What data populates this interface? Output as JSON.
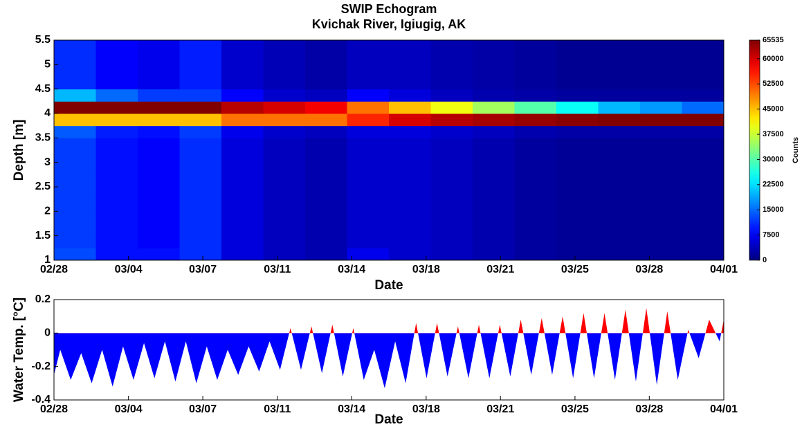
{
  "chart_data": [
    {
      "type": "heatmap",
      "title": "SWIP Echogram",
      "subtitle": "Kvichak River, Igiugig, AK",
      "xlabel": "Date",
      "ylabel": "Depth [m]",
      "colorbar_label": "Counts",
      "colormap": "jet",
      "xlim": [
        0,
        32
      ],
      "ylim": [
        1,
        5.5
      ],
      "xticks": [
        {
          "value": 0,
          "label": "02/28"
        },
        {
          "value": 3.56,
          "label": "03/04"
        },
        {
          "value": 7.11,
          "label": "03/07"
        },
        {
          "value": 10.67,
          "label": "03/11"
        },
        {
          "value": 14.22,
          "label": "03/14"
        },
        {
          "value": 17.78,
          "label": "03/18"
        },
        {
          "value": 21.33,
          "label": "03/21"
        },
        {
          "value": 24.89,
          "label": "03/25"
        },
        {
          "value": 28.44,
          "label": "03/28"
        },
        {
          "value": 32,
          "label": "04/01"
        }
      ],
      "yticks": [
        1,
        1.5,
        2,
        2.5,
        3,
        3.5,
        4,
        4.5,
        5,
        5.5
      ],
      "zlim": [
        0,
        65535
      ],
      "zticks": [
        0,
        7500,
        15000,
        22500,
        30000,
        37500,
        45000,
        52500,
        60000,
        65535
      ],
      "xbins": [
        0,
        2,
        4,
        6,
        8,
        10,
        12,
        14,
        16,
        18,
        20,
        22,
        24,
        26,
        28,
        30,
        32
      ],
      "ybins": [
        1,
        1.25,
        1.5,
        1.75,
        2,
        2.25,
        2.5,
        2.75,
        3,
        3.25,
        3.5,
        3.75,
        4,
        4.25,
        4.5,
        4.75,
        5,
        5.25,
        5.5
      ],
      "z": [
        [
          13000,
          9000,
          9000,
          11000,
          6000,
          4000,
          3000,
          7000,
          5000,
          4000,
          3000,
          2000,
          1500,
          1500,
          1500,
          1500
        ],
        [
          12000,
          9000,
          8000,
          11000,
          6000,
          4000,
          3000,
          5000,
          5000,
          4000,
          3000,
          2000,
          1500,
          1500,
          1500,
          1500
        ],
        [
          12000,
          9000,
          8000,
          11000,
          6000,
          4000,
          3000,
          5000,
          5000,
          4000,
          3000,
          2000,
          1500,
          1500,
          1500,
          1500
        ],
        [
          12000,
          9000,
          8000,
          11000,
          6000,
          4000,
          3000,
          5000,
          5000,
          4000,
          3000,
          2000,
          1500,
          1500,
          1500,
          1500
        ],
        [
          12000,
          9000,
          8000,
          11000,
          6000,
          4000,
          3000,
          5000,
          5000,
          4000,
          3000,
          2000,
          1500,
          1500,
          1500,
          1500
        ],
        [
          12000,
          9000,
          8000,
          11000,
          6000,
          4000,
          3000,
          5000,
          5000,
          4000,
          3000,
          2000,
          1500,
          1500,
          1500,
          1500
        ],
        [
          12000,
          9000,
          8000,
          11000,
          6000,
          4000,
          3000,
          5000,
          5000,
          4000,
          3000,
          2000,
          1500,
          1500,
          1500,
          1500
        ],
        [
          12000,
          9000,
          8000,
          11000,
          6000,
          4000,
          3000,
          5000,
          5000,
          4000,
          3000,
          2000,
          1500,
          1500,
          1500,
          1500
        ],
        [
          12000,
          9000,
          8000,
          11000,
          6000,
          4000,
          3000,
          5000,
          5000,
          4000,
          3000,
          2000,
          1500,
          1500,
          1500,
          1500
        ],
        [
          12000,
          9000,
          8000,
          11000,
          6000,
          4000,
          3000,
          5000,
          5000,
          4000,
          3000,
          2000,
          1500,
          1500,
          1500,
          1500
        ],
        [
          14000,
          10000,
          9000,
          12000,
          7000,
          5000,
          4000,
          6000,
          6000,
          5000,
          4000,
          3000,
          2500,
          2500,
          2500,
          2500
        ],
        [
          45000,
          45000,
          45000,
          45000,
          50000,
          50000,
          50000,
          55000,
          60000,
          62000,
          63000,
          64000,
          65000,
          65535,
          65535,
          65535
        ],
        [
          65535,
          65535,
          65535,
          65535,
          62000,
          60000,
          58000,
          50000,
          45000,
          40000,
          35000,
          30000,
          25000,
          20000,
          18000,
          15000
        ],
        [
          20000,
          15000,
          12000,
          12000,
          8000,
          5000,
          4000,
          8000,
          6000,
          4000,
          3000,
          2500,
          2000,
          2000,
          2000,
          2000
        ],
        [
          11000,
          8000,
          7000,
          10000,
          5000,
          3500,
          2500,
          4000,
          4000,
          3000,
          2500,
          1800,
          1200,
          1200,
          1200,
          1200
        ],
        [
          11000,
          8000,
          7000,
          10000,
          5000,
          3500,
          2500,
          4000,
          4000,
          3000,
          2500,
          1800,
          1200,
          1200,
          1200,
          1200
        ],
        [
          11000,
          8000,
          7000,
          10000,
          5000,
          3500,
          2500,
          4000,
          4000,
          3000,
          2500,
          1800,
          1200,
          1200,
          1200,
          1200
        ],
        [
          11000,
          8000,
          7000,
          10000,
          5000,
          3500,
          2500,
          4000,
          4000,
          3000,
          2500,
          1800,
          1200,
          1200,
          1200,
          1200
        ]
      ]
    },
    {
      "type": "area",
      "xlabel": "Date",
      "ylabel": "Water Temp. [°C]",
      "xlim": [
        0,
        32
      ],
      "ylim": [
        -0.4,
        0.2
      ],
      "xticks": [
        {
          "value": 0,
          "label": "02/28"
        },
        {
          "value": 3.56,
          "label": "03/04"
        },
        {
          "value": 7.11,
          "label": "03/07"
        },
        {
          "value": 10.67,
          "label": "03/11"
        },
        {
          "value": 14.22,
          "label": "03/14"
        },
        {
          "value": 17.78,
          "label": "03/18"
        },
        {
          "value": 21.33,
          "label": "03/21"
        },
        {
          "value": 24.89,
          "label": "03/25"
        },
        {
          "value": 28.44,
          "label": "03/28"
        },
        {
          "value": 32,
          "label": "04/01"
        }
      ],
      "yticks": [
        -0.4,
        -0.2,
        0,
        0.2
      ],
      "color_above": "#ff0000",
      "color_below": "#0000ff",
      "x": [
        0,
        0.3,
        0.8,
        1.3,
        1.8,
        2.3,
        2.8,
        3.3,
        3.8,
        4.3,
        4.8,
        5.3,
        5.8,
        6.3,
        6.8,
        7.3,
        7.8,
        8.3,
        8.8,
        9.3,
        9.8,
        10.3,
        10.8,
        11.3,
        11.8,
        12.3,
        12.8,
        13.3,
        13.8,
        14.3,
        14.8,
        15.3,
        15.8,
        16.3,
        16.8,
        17.3,
        17.8,
        18.3,
        18.8,
        19.3,
        19.8,
        20.3,
        20.8,
        21.3,
        21.8,
        22.3,
        22.8,
        23.3,
        23.8,
        24.3,
        24.8,
        25.3,
        25.8,
        26.3,
        26.8,
        27.3,
        27.8,
        28.3,
        28.8,
        29.3,
        29.8,
        30.3,
        30.8,
        31.3,
        31.8,
        32
      ],
      "values": [
        -0.25,
        -0.1,
        -0.28,
        -0.12,
        -0.3,
        -0.1,
        -0.32,
        -0.08,
        -0.28,
        -0.06,
        -0.27,
        -0.05,
        -0.29,
        -0.05,
        -0.3,
        -0.08,
        -0.28,
        -0.1,
        -0.25,
        -0.08,
        -0.23,
        -0.05,
        -0.22,
        0.03,
        -0.22,
        0.04,
        -0.24,
        0.05,
        -0.26,
        0.03,
        -0.28,
        -0.1,
        -0.33,
        -0.05,
        -0.3,
        0.06,
        -0.27,
        0.06,
        -0.26,
        0.04,
        -0.27,
        0.05,
        -0.27,
        0.05,
        -0.26,
        0.08,
        -0.25,
        0.09,
        -0.25,
        0.1,
        -0.27,
        0.12,
        -0.27,
        0.12,
        -0.28,
        0.14,
        -0.29,
        0.15,
        -0.31,
        0.13,
        -0.28,
        0.02,
        -0.15,
        0.08,
        -0.05,
        0.08
      ]
    }
  ]
}
